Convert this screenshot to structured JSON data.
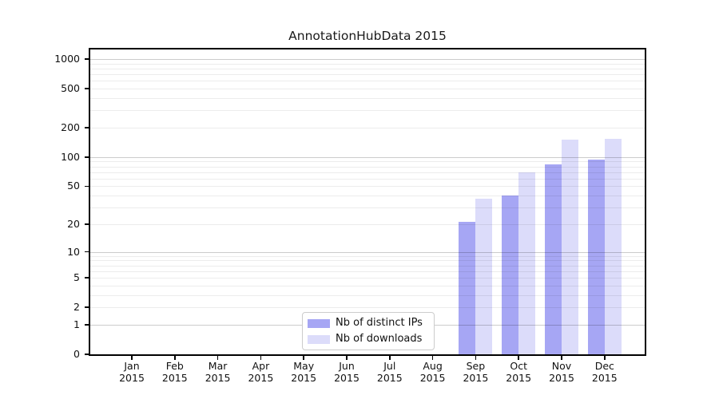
{
  "page": {
    "background": "#ffffff"
  },
  "chart_data": {
    "type": "bar",
    "title": "AnnotationHubData 2015",
    "scale": "log1p",
    "ylim": [
      0,
      1275
    ],
    "grid": true,
    "legend_position": "lower center",
    "xlabel": "",
    "ylabel": "",
    "categories": [
      "Jan 2015",
      "Feb 2015",
      "Mar 2015",
      "Apr 2015",
      "May 2015",
      "Jun 2015",
      "Jul 2015",
      "Aug 2015",
      "Sep 2015",
      "Oct 2015",
      "Nov 2015",
      "Dec 2015"
    ],
    "series": [
      {
        "name": "Nb of distinct IPs",
        "color": "#a6a6f4",
        "values": [
          0,
          0,
          0,
          0,
          0,
          0,
          0,
          0,
          21,
          40,
          84,
          95
        ]
      },
      {
        "name": "Nb of downloads",
        "color": "#dcdcfa",
        "values": [
          0,
          0,
          0,
          0,
          0,
          0,
          0,
          0,
          37,
          70,
          150,
          153
        ]
      }
    ],
    "y_ticks": [
      0,
      1,
      2,
      5,
      10,
      20,
      50,
      100,
      200,
      500,
      1000
    ],
    "gridlines": {
      "major": [
        1,
        10,
        100,
        1000
      ],
      "minor": [
        2,
        3,
        4,
        5,
        6,
        7,
        8,
        9,
        20,
        30,
        40,
        50,
        60,
        70,
        80,
        90,
        200,
        300,
        400,
        500,
        600,
        700,
        800,
        900
      ]
    },
    "colors": {
      "spine": "#000000",
      "text": "#1a1a1a"
    }
  }
}
